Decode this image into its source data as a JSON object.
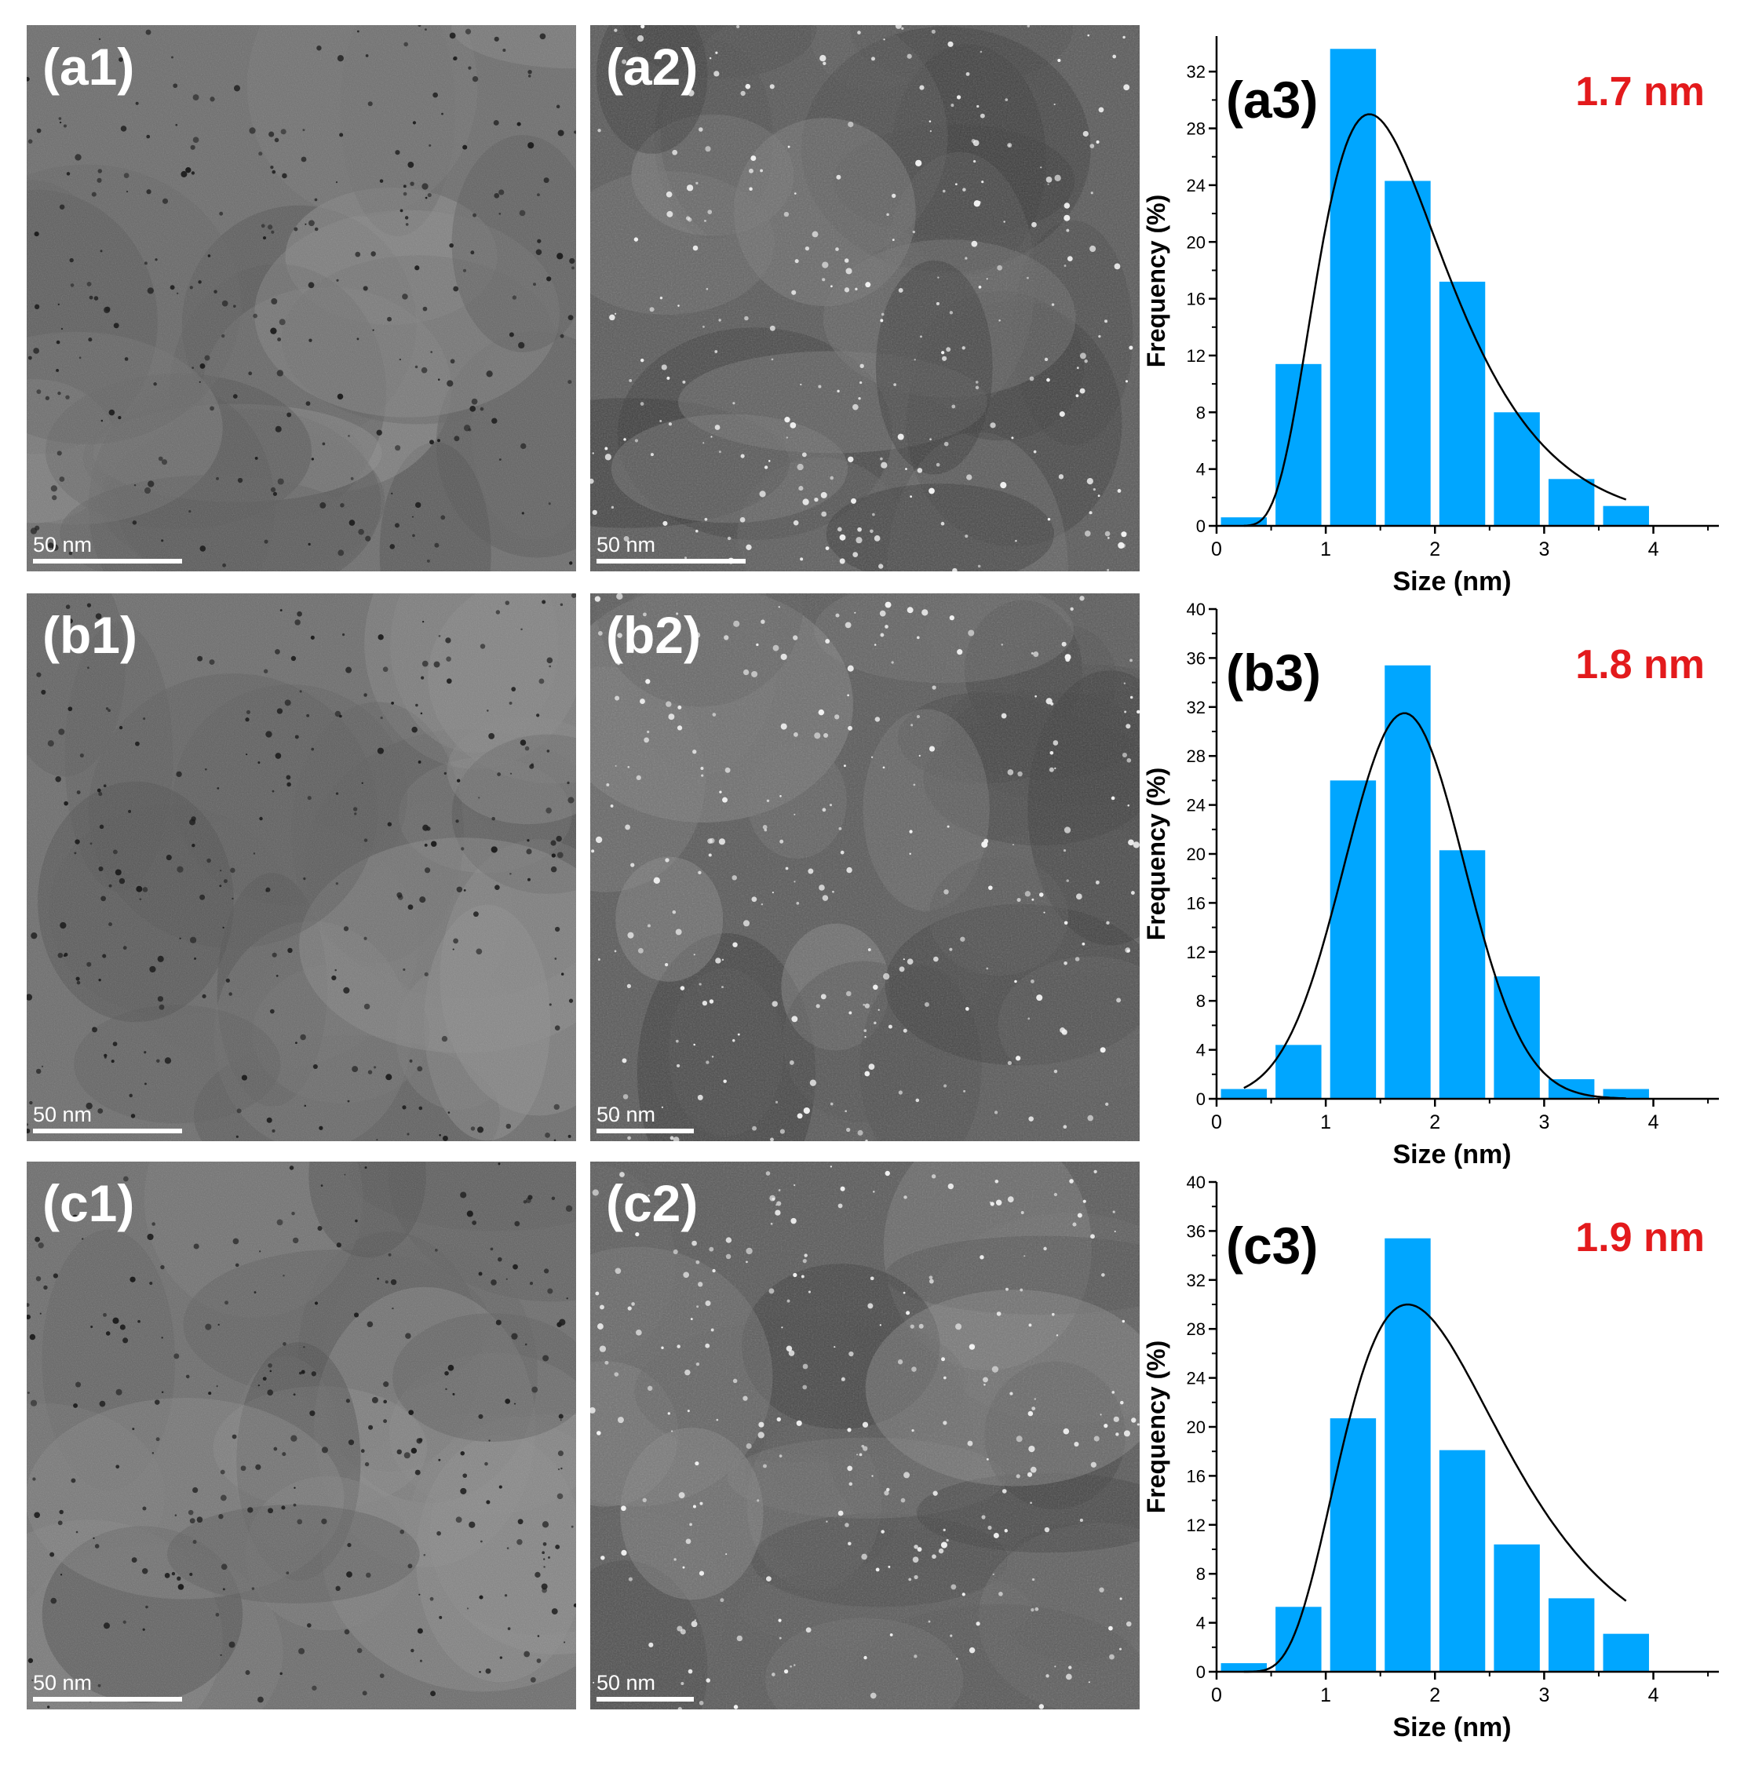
{
  "micrographs": [
    {
      "id": "a1",
      "label": "(a1)",
      "scale": "50 nm",
      "mode": "tem"
    },
    {
      "id": "a2",
      "label": "(a2)",
      "scale": "50 nm",
      "mode": "haadf"
    },
    {
      "id": "b1",
      "label": "(b1)",
      "scale": "50 nm",
      "mode": "tem"
    },
    {
      "id": "b2",
      "label": "(b2)",
      "scale": "50 nm",
      "mode": "haadf"
    },
    {
      "id": "c1",
      "label": "(c1)",
      "scale": "50 nm",
      "mode": "tem"
    },
    {
      "id": "c2",
      "label": "(c2)",
      "scale": "50 nm",
      "mode": "haadf"
    }
  ],
  "colors": {
    "bar": "#00a6ff",
    "curve": "#000000",
    "size_label": "#e31a1c"
  },
  "chart_data": [
    {
      "type": "bar",
      "panel_label": "(a3)",
      "annotation": "1.7 nm",
      "xlabel": "Size (nm)",
      "ylabel": "Frequency (%)",
      "xlim": [
        0,
        4.6
      ],
      "ylim": [
        0,
        34.5
      ],
      "xticks": [
        0,
        1,
        2,
        3,
        4
      ],
      "yticks": [
        0,
        4,
        8,
        12,
        16,
        20,
        24,
        28,
        32
      ],
      "bin_width": 0.5,
      "bins": [
        0.25,
        0.75,
        1.25,
        1.75,
        2.25,
        2.75,
        3.25,
        3.75
      ],
      "values": [
        0.6,
        11.4,
        33.6,
        24.3,
        17.2,
        8.0,
        3.3,
        1.4
      ],
      "fit_curve": {
        "type": "lognormal",
        "peak_x": 1.4,
        "peak_y": 29.0,
        "x_range": [
          0.25,
          3.75
        ]
      }
    },
    {
      "type": "bar",
      "panel_label": "(b3)",
      "annotation": "1.8 nm",
      "xlabel": "Size (nm)",
      "ylabel": "Frequency (%)",
      "xlim": [
        0,
        4.6
      ],
      "ylim": [
        0,
        40
      ],
      "xticks": [
        0,
        1,
        2,
        3,
        4
      ],
      "yticks": [
        0,
        4,
        8,
        12,
        16,
        20,
        24,
        28,
        32,
        36,
        40
      ],
      "bin_width": 0.5,
      "bins": [
        0.25,
        0.75,
        1.25,
        1.75,
        2.25,
        2.75,
        3.25,
        3.75
      ],
      "values": [
        0.8,
        4.4,
        26.0,
        35.4,
        20.3,
        10.0,
        1.6,
        0.8
      ],
      "fit_curve": {
        "type": "gaussian",
        "peak_x": 1.72,
        "peak_y": 31.5,
        "x_range": [
          0.25,
          3.75
        ]
      }
    },
    {
      "type": "bar",
      "panel_label": "(c3)",
      "annotation": "1.9 nm",
      "xlabel": "Size (nm)",
      "ylabel": "Frequency (%)",
      "xlim": [
        0,
        4.6
      ],
      "ylim": [
        0,
        40
      ],
      "xticks": [
        0,
        1,
        2,
        3,
        4
      ],
      "yticks": [
        0,
        4,
        8,
        12,
        16,
        20,
        24,
        28,
        32,
        36,
        40
      ],
      "bin_width": 0.5,
      "bins": [
        0.25,
        0.75,
        1.25,
        1.75,
        2.25,
        2.75,
        3.25,
        3.75
      ],
      "values": [
        0.7,
        5.3,
        20.7,
        35.4,
        18.1,
        10.4,
        6.0,
        3.1
      ],
      "fit_curve": {
        "type": "lognormal",
        "peak_x": 1.75,
        "peak_y": 30.0,
        "x_range": [
          0.25,
          3.75
        ]
      }
    }
  ]
}
